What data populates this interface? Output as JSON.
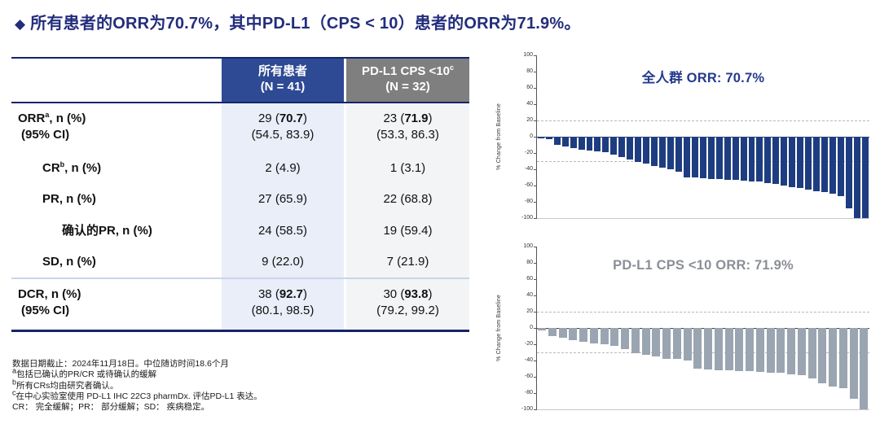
{
  "slide": {
    "bullet": "◆",
    "title": "所有患者的ORR为70.7%，其中PD-L1（CPS < 10）患者的ORR为71.9%。",
    "title_color": "#232d7c"
  },
  "table": {
    "columns": [
      {
        "line1": "所有患者",
        "sup": "",
        "line2": "(N = 41)",
        "bg": "#2e4a94"
      },
      {
        "line1": "PD-L1 CPS <10",
        "sup": "c",
        "line2": "(N = 32)",
        "bg": "#7f7f7f"
      }
    ],
    "rows": [
      {
        "label": "ORR",
        "label_sup": "a",
        "label_rest": ", n (%)",
        "label2": "(95% CI)",
        "indent": 0,
        "pad": "pad-l",
        "cells": [
          {
            "pre": "29 (",
            "strong": "70.7",
            "post": ")",
            "sub": "(54.5, 83.9)"
          },
          {
            "pre": "23 (",
            "strong": "71.9",
            "post": ")",
            "sub": "(53.3, 86.3)"
          }
        ]
      },
      {
        "label": "CR",
        "label_sup": "b",
        "label_rest": ", n (%)",
        "label2": "",
        "indent": 1,
        "pad": "pad-s",
        "cells": [
          {
            "pre": "2 (4.9)",
            "strong": "",
            "post": "",
            "sub": ""
          },
          {
            "pre": "1 (3.1)",
            "strong": "",
            "post": "",
            "sub": ""
          }
        ]
      },
      {
        "label": "PR",
        "label_sup": "",
        "label_rest": ", n (%)",
        "label2": "",
        "indent": 1,
        "pad": "pad-s",
        "cells": [
          {
            "pre": "27 (65.9)",
            "strong": "",
            "post": "",
            "sub": ""
          },
          {
            "pre": "22 (68.8)",
            "strong": "",
            "post": "",
            "sub": ""
          }
        ]
      },
      {
        "label": "确认的PR",
        "label_sup": "",
        "label_rest": ", n (%)",
        "label2": "",
        "indent": 2,
        "pad": "pad-s",
        "cells": [
          {
            "pre": "24 (58.5)",
            "strong": "",
            "post": "",
            "sub": ""
          },
          {
            "pre": "19 (59.4)",
            "strong": "",
            "post": "",
            "sub": ""
          }
        ]
      },
      {
        "label": "SD",
        "label_sup": "",
        "label_rest": ", n (%)",
        "label2": "",
        "indent": 1,
        "pad": "pad-s",
        "cells": [
          {
            "pre": "9 (22.0)",
            "strong": "",
            "post": "",
            "sub": ""
          },
          {
            "pre": "7 (21.9)",
            "strong": "",
            "post": "",
            "sub": ""
          }
        ]
      },
      {
        "label": "DCR",
        "label_sup": "",
        "label_rest": ", n (%)",
        "label2": "(95% CI)",
        "indent": 0,
        "pad": "pad-l",
        "separator_before": true,
        "cells": [
          {
            "pre": "38 (",
            "strong": "92.7",
            "post": ")",
            "sub": "(80.1, 98.5)"
          },
          {
            "pre": "30 (",
            "strong": "93.8",
            "post": ")",
            "sub": "(79.2, 99.2)"
          }
        ]
      }
    ]
  },
  "footnotes": [
    {
      "sup": "",
      "text": "数据日期截止：2024年11月18日。中位随访时间18.6个月"
    },
    {
      "sup": "a",
      "text": "包括已确认的PR/CR 或待确认的缓解"
    },
    {
      "sup": "b",
      "text": "所有CRs均由研究者确认。"
    },
    {
      "sup": "c",
      "text": "在中心实验室使用 PD-L1 IHC 22C3 pharmDx. 评估PD-L1 表达。"
    },
    {
      "sup": "",
      "text": "CR： 完全缓解；PR： 部分缓解；SD： 疾病稳定。"
    }
  ],
  "chart_data": [
    {
      "type": "bar",
      "subtype": "waterfall",
      "title": "全人群 ORR: 70.7%",
      "title_color": "#253a8c",
      "bar_color": "#1e3d80",
      "ylabel": "% Change from Baseline",
      "ylim": [
        -100,
        100
      ],
      "ytick_step": 20,
      "dashed_lines": [
        20,
        -30
      ],
      "grid": "dashed-reference-only",
      "legend": "none",
      "n_patients": 41,
      "values": [
        -2,
        -3,
        -10,
        -12,
        -14,
        -16,
        -17,
        -18,
        -19,
        -22,
        -25,
        -28,
        -31,
        -33,
        -36,
        -38,
        -40,
        -43,
        -50,
        -50,
        -51,
        -52,
        -52,
        -53,
        -53,
        -54,
        -55,
        -55,
        -57,
        -58,
        -60,
        -62,
        -63,
        -65,
        -67,
        -68,
        -70,
        -73,
        -88,
        -100,
        -100
      ]
    },
    {
      "type": "bar",
      "subtype": "waterfall",
      "title": "PD-L1 CPS <10 ORR: 71.9%",
      "title_color": "#8a8f96",
      "bar_color": "#9aa5b1",
      "ylabel": "% Change from Baseline",
      "ylim": [
        -100,
        100
      ],
      "ytick_step": 20,
      "dashed_lines": [
        20,
        -30
      ],
      "grid": "dashed-reference-only",
      "legend": "none",
      "n_patients": 32,
      "values": [
        -3,
        -10,
        -12,
        -15,
        -17,
        -19,
        -20,
        -22,
        -26,
        -31,
        -33,
        -35,
        -38,
        -38,
        -40,
        -50,
        -51,
        -52,
        -52,
        -53,
        -53,
        -54,
        -55,
        -55,
        -57,
        -58,
        -62,
        -68,
        -72,
        -74,
        -87,
        -100
      ]
    }
  ]
}
